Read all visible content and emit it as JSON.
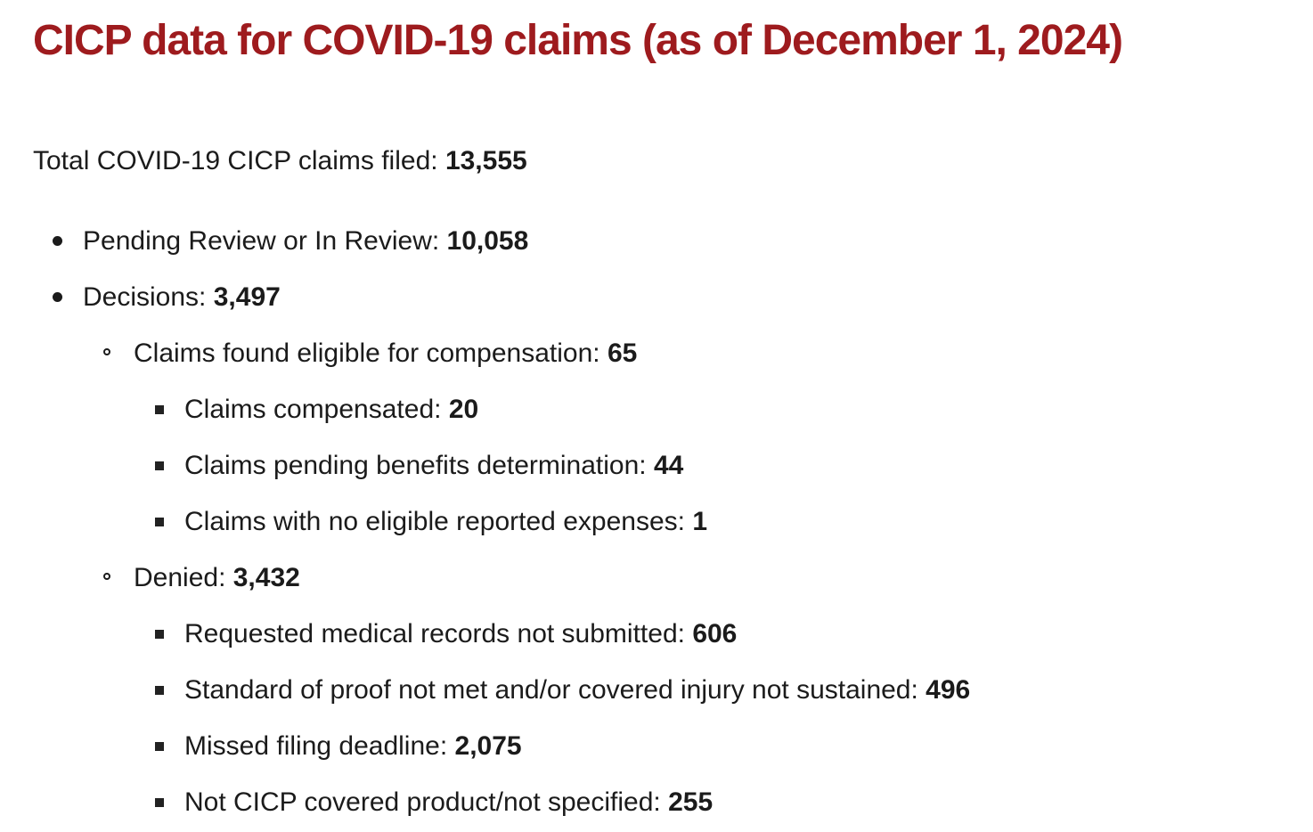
{
  "title": "CICP data for COVID-19 claims (as of December 1, 2024)",
  "total": {
    "label": "Total COVID-19 CICP claims filed:",
    "value": "13,555"
  },
  "items": [
    {
      "label": "Pending Review or In Review:",
      "value": "10,058",
      "children": []
    },
    {
      "label": "Decisions:",
      "value": "3,497",
      "children": [
        {
          "label": "Claims found eligible for compensation:",
          "value": "65",
          "children": [
            {
              "label": "Claims compensated:",
              "value": "20"
            },
            {
              "label": "Claims pending benefits determination:",
              "value": "44"
            },
            {
              "label": "Claims with no eligible reported expenses:",
              "value": "1"
            }
          ]
        },
        {
          "label": "Denied:",
          "value": "3,432",
          "children": [
            {
              "label": "Requested medical records not submitted:",
              "value": "606"
            },
            {
              "label": "Standard of proof not met and/or covered injury not sustained:",
              "value": "496"
            },
            {
              "label": "Missed filing deadline:",
              "value": "2,075"
            },
            {
              "label": "Not CICP covered product/not specified:",
              "value": "255"
            }
          ]
        }
      ]
    }
  ],
  "colors": {
    "heading_red": "#9e1b1e",
    "body_text": "#1b1b1b"
  }
}
